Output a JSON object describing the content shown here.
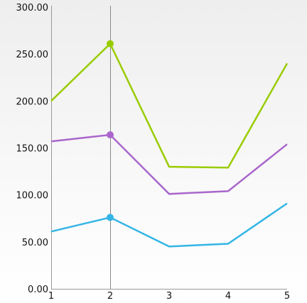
{
  "chart_data": {
    "type": "line",
    "title": "",
    "xlabel": "",
    "ylabel": "",
    "x": [
      1,
      2,
      3,
      4,
      5
    ],
    "x_tick_labels": [
      "1",
      "2",
      "3",
      "4",
      "5"
    ],
    "ylim": [
      0,
      300
    ],
    "y_ticks": [
      0,
      50,
      100,
      150,
      200,
      250,
      300
    ],
    "y_tick_labels": [
      "0.00",
      "50.00",
      "100.00",
      "150.00",
      "200.00",
      "250.00",
      "300.00"
    ],
    "grid": false,
    "legend": "none",
    "selected_x": 2,
    "series": [
      {
        "values": [
          200,
          261,
          130,
          129,
          240
        ],
        "color": "#99cc00"
      },
      {
        "values": [
          157,
          164,
          101,
          104,
          154
        ],
        "color": "#aa66cc"
      },
      {
        "values": [
          61,
          76,
          45,
          48,
          91
        ],
        "color": "#33b5e5"
      }
    ]
  }
}
